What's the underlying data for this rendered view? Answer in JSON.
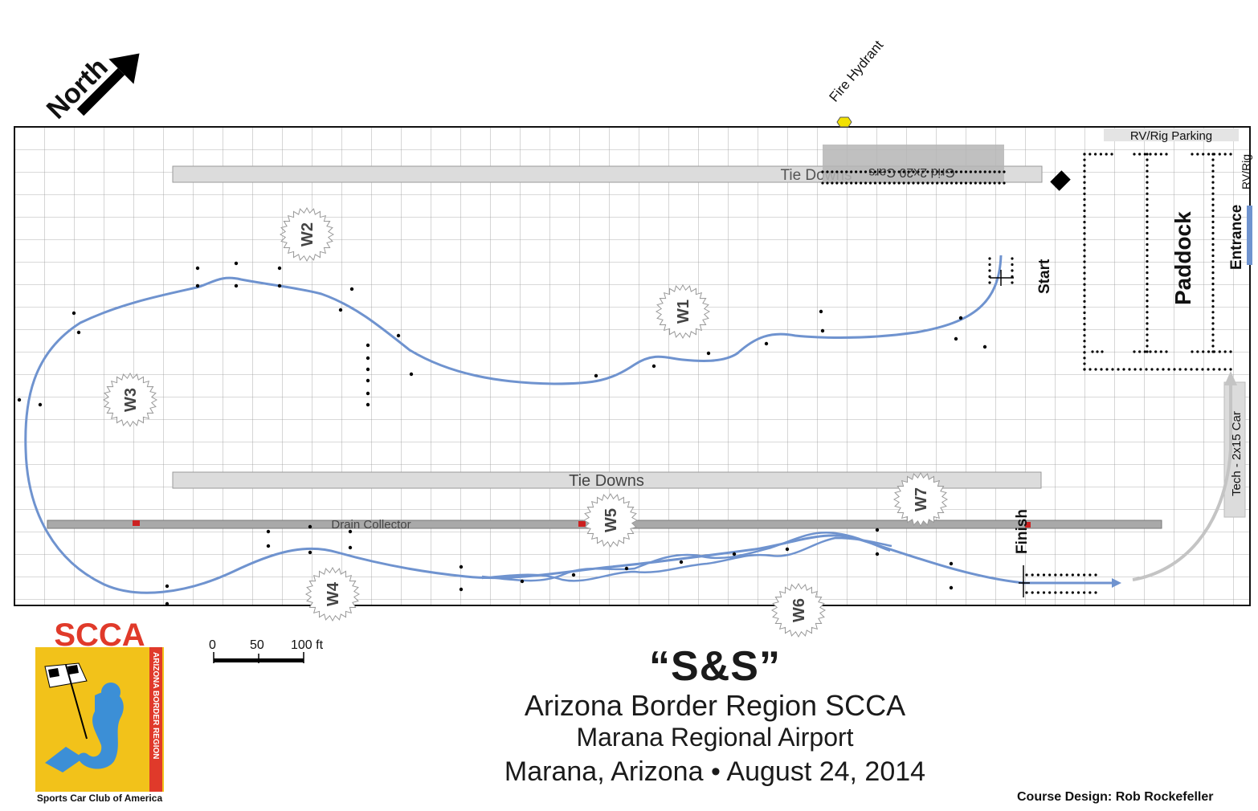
{
  "north": {
    "label": "North"
  },
  "fire_hydrant": {
    "label": "Fire Hydrant"
  },
  "areas": {
    "rv_rig_parking": "RV/Rig Parking",
    "rv_rig_side": "RV/Rig",
    "grid": "Grid 2x20 Cars",
    "tie_downs_top": "Tie Downs",
    "tie_downs_mid": "Tie Downs",
    "drain_collector": "Drain Collector",
    "paddock": "Paddock",
    "entrance": "Entrance",
    "tech": "Tech - 2x15 Car"
  },
  "course": {
    "start": "Start",
    "finish": "Finish"
  },
  "workers": [
    "W1",
    "W2",
    "W3",
    "W4",
    "W5",
    "W6",
    "W7"
  ],
  "scale": {
    "ticks": [
      "0",
      "50",
      "100 ft"
    ]
  },
  "logo": {
    "name": "SCCA",
    "side_text": "ARIZONA BORDER REGION",
    "bottom_text": "Sports Car Club of America",
    "colors": {
      "red": "#e03a2a",
      "yellow": "#f2c21a",
      "blue": "#3c8fd6"
    }
  },
  "event": {
    "title": "“S&S”",
    "organization": "Arizona Border Region SCCA",
    "venue": "Marana Regional Airport",
    "location_date": "Marana, Arizona • August 24, 2014",
    "designer": "Course Design:  Rob Rockefeller"
  },
  "colors": {
    "course_line": "#6f93cf",
    "grid_line": "#9a9a9a",
    "tie_down": "#d8d8d8",
    "hydrant": "#f2e200"
  }
}
